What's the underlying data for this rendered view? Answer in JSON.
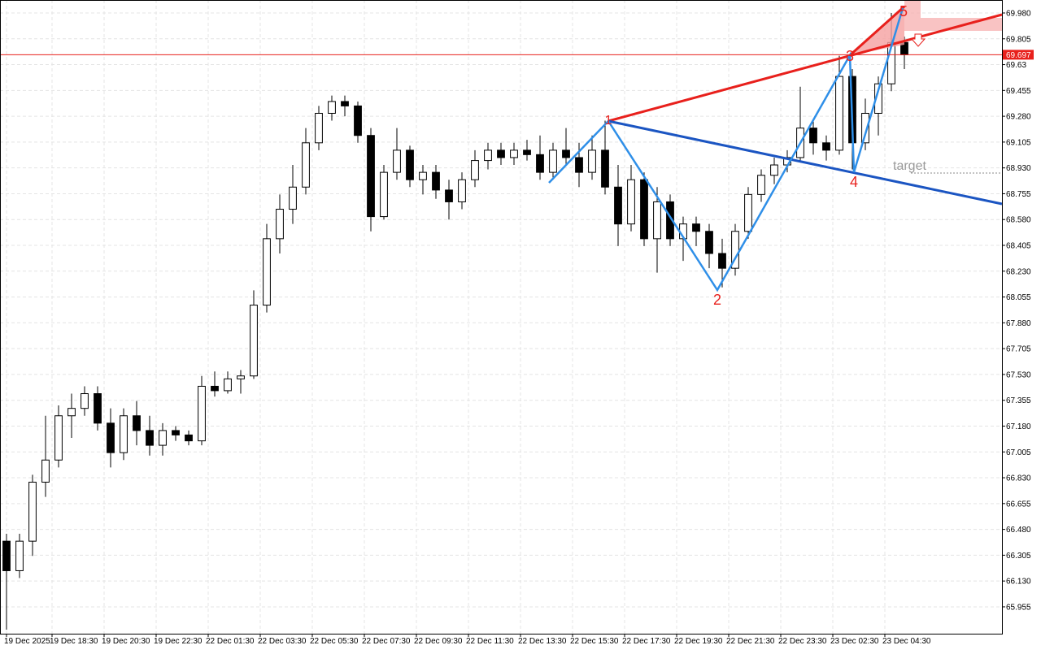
{
  "chart_data": {
    "type": "candlestick",
    "x": [
      0,
      2,
      4,
      6,
      8,
      10,
      12,
      14,
      16,
      18,
      20,
      22,
      24,
      26,
      28,
      30,
      32,
      34,
      36,
      38,
      40,
      42,
      44,
      46,
      48,
      50,
      52,
      54,
      56,
      58,
      60,
      62,
      64,
      66,
      68,
      70,
      72,
      74,
      76,
      78,
      80,
      82,
      84,
      86,
      88,
      90,
      92,
      94,
      96,
      98,
      100,
      102,
      104,
      106,
      108,
      110,
      112,
      114,
      116,
      118,
      120,
      122,
      124,
      126,
      128,
      130,
      132,
      134,
      136,
      138
    ],
    "open": [
      66.4,
      66.2,
      66.4,
      66.8,
      66.95,
      67.25,
      67.3,
      67.4,
      67.2,
      67.0,
      67.25,
      67.15,
      67.05,
      67.15,
      67.12,
      67.08,
      67.45,
      67.42,
      67.5,
      67.52,
      68.0,
      68.45,
      68.65,
      68.8,
      69.1,
      69.3,
      69.38,
      69.35,
      69.15,
      68.6,
      68.9,
      69.05,
      68.85,
      68.9,
      68.78,
      68.7,
      68.85,
      68.98,
      69.05,
      69.0,
      69.05,
      69.02,
      68.9,
      69.05,
      69.0,
      68.9,
      69.05,
      68.8,
      68.55,
      68.85,
      68.45,
      68.7,
      68.45,
      68.55,
      68.5,
      68.35,
      68.25,
      68.5,
      68.75,
      68.88,
      68.95,
      69.0,
      69.2,
      69.1,
      69.05,
      69.55,
      69.1,
      69.3,
      69.5,
      69.78
    ],
    "high": [
      66.45,
      66.45,
      66.85,
      67.25,
      67.32,
      67.4,
      67.45,
      67.45,
      67.3,
      67.3,
      67.35,
      67.25,
      67.2,
      67.18,
      67.15,
      67.52,
      67.55,
      67.55,
      67.56,
      68.1,
      68.55,
      68.75,
      68.95,
      69.2,
      69.35,
      69.42,
      69.42,
      69.38,
      69.2,
      68.95,
      69.2,
      69.08,
      68.95,
      68.95,
      68.85,
      68.9,
      69.05,
      69.1,
      69.1,
      69.1,
      69.12,
      69.15,
      69.1,
      69.2,
      69.1,
      69.15,
      69.25,
      68.95,
      68.95,
      68.9,
      68.8,
      68.75,
      68.6,
      68.6,
      68.55,
      68.45,
      68.55,
      68.8,
      68.92,
      69.0,
      69.05,
      69.48,
      69.25,
      69.15,
      69.69,
      69.6,
      69.4,
      69.55,
      69.98,
      69.82
    ],
    "low": [
      65.8,
      66.15,
      66.3,
      66.7,
      66.9,
      67.1,
      67.25,
      67.15,
      66.9,
      66.95,
      67.05,
      66.98,
      66.98,
      67.08,
      67.05,
      67.05,
      67.38,
      67.4,
      67.4,
      67.5,
      67.95,
      68.35,
      68.55,
      68.75,
      69.05,
      69.25,
      69.28,
      69.1,
      68.5,
      68.58,
      68.85,
      68.8,
      68.75,
      68.72,
      68.58,
      68.65,
      68.8,
      68.92,
      68.95,
      68.95,
      68.98,
      68.85,
      68.85,
      68.95,
      68.8,
      68.85,
      68.75,
      68.4,
      68.5,
      68.4,
      68.22,
      68.4,
      68.3,
      68.4,
      68.25,
      68.12,
      68.2,
      68.45,
      68.7,
      68.82,
      68.9,
      68.98,
      69.02,
      68.98,
      69.02,
      68.92,
      69.05,
      69.15,
      69.45,
      69.6
    ],
    "close": [
      66.2,
      66.4,
      66.8,
      66.95,
      67.25,
      67.3,
      67.4,
      67.2,
      67.0,
      67.25,
      67.15,
      67.05,
      67.15,
      67.12,
      67.08,
      67.45,
      67.42,
      67.5,
      67.52,
      68.0,
      68.45,
      68.65,
      68.8,
      69.1,
      69.3,
      69.38,
      69.35,
      69.15,
      68.6,
      68.9,
      69.05,
      68.85,
      68.9,
      68.78,
      68.7,
      68.85,
      68.98,
      69.05,
      69.0,
      69.05,
      69.02,
      68.9,
      69.05,
      69.0,
      68.9,
      69.05,
      68.8,
      68.55,
      68.85,
      68.45,
      68.7,
      68.45,
      68.55,
      68.5,
      68.35,
      68.25,
      68.5,
      68.75,
      68.88,
      68.95,
      69.0,
      69.2,
      69.1,
      69.05,
      69.55,
      69.1,
      69.3,
      69.5,
      69.78,
      69.697
    ],
    "up_color": "#ffffff",
    "down_color": "#000000",
    "xlim": [
      -1,
      153
    ],
    "ylim": [
      65.773,
      70.068
    ],
    "xticks": [
      {
        "value": 0,
        "label": "19 Dec 2025"
      },
      {
        "value": 7,
        "label": "19 Dec 18:30"
      },
      {
        "value": 15,
        "label": "19 Dec 20:30"
      },
      {
        "value": 23,
        "label": "19 Dec 22:30"
      },
      {
        "value": 31,
        "label": "22 Dec 01:30"
      },
      {
        "value": 39,
        "label": "22 Dec 03:30"
      },
      {
        "value": 47,
        "label": "22 Dec 05:30"
      },
      {
        "value": 55,
        "label": "22 Dec 07:30"
      },
      {
        "value": 63,
        "label": "22 Dec 09:30"
      },
      {
        "value": 71,
        "label": "22 Dec 11:30"
      },
      {
        "value": 79,
        "label": "22 Dec 13:30"
      },
      {
        "value": 87,
        "label": "22 Dec 15:30"
      },
      {
        "value": 95,
        "label": "22 Dec 17:30"
      },
      {
        "value": 103,
        "label": "22 Dec 19:30"
      },
      {
        "value": 111,
        "label": "22 Dec 21:30"
      },
      {
        "value": 119,
        "label": "22 Dec 23:30"
      },
      {
        "value": 127,
        "label": "23 Dec 02:30"
      },
      {
        "value": 135,
        "label": "23 Dec 04:30"
      }
    ],
    "yticks": [
      {
        "value": 69.98,
        "label": "69.980"
      },
      69.805,
      69.63,
      {
        "value": 69.455,
        "label": "69.455"
      },
      {
        "value": 69.28,
        "label": "69.280"
      },
      69.105,
      {
        "value": 68.93,
        "label": "68.930"
      },
      68.755,
      {
        "value": 68.58,
        "label": "68.580"
      },
      68.405,
      {
        "value": 68.23,
        "label": "68.230"
      },
      68.055,
      {
        "value": 67.88,
        "label": "67.880"
      },
      67.705,
      {
        "value": 67.53,
        "label": "67.530"
      },
      67.355,
      {
        "value": 67.18,
        "label": "67.180"
      },
      67.005,
      {
        "value": 66.83,
        "label": "66.830"
      },
      66.655,
      {
        "value": 66.48,
        "label": "66.480"
      },
      66.305,
      {
        "value": 66.13,
        "label": "66.130"
      },
      65.955
    ],
    "grid": true,
    "current_price": {
      "value": 69.697,
      "label": "69.697"
    },
    "wave_labels": [
      "1",
      "2",
      "3",
      "4",
      "5"
    ],
    "target_label": "target"
  }
}
